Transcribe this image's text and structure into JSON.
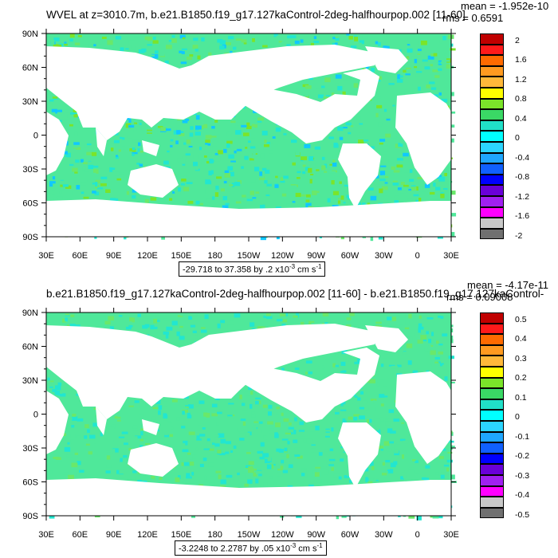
{
  "top": {
    "title": "WVEL at z=3010.7m, b.e21.B1850.f19_g17.127kaControl-2deg-halfhourpop.002 [11-60]",
    "mean": "mean = -1.952e-10",
    "rms": "rms = 0.6591",
    "range": "-29.718 to 37.358 by .2 x10",
    "range_exp": "-3",
    "range_unit": " cm s",
    "range_unit_exp": "-1",
    "colorbar": [
      "2",
      "1.6",
      "1.2",
      "0.8",
      "0.4",
      "0",
      "-0.4",
      "-0.8",
      "-1.2",
      "-1.6",
      "-2"
    ]
  },
  "bottom": {
    "title": "b.e21.B1850.f19_g17.127kaControl-2deg-halfhourpop.002 [11-60] - b.e21.B1850.f19_g17.127kaControl-",
    "mean": "mean = -4.17e-11",
    "rms": "rms = 0.09008",
    "range": "-3.2248 to 2.2787 by .05 x10",
    "range_exp": "-3",
    "range_unit": " cm s",
    "range_unit_exp": "-1",
    "colorbar": [
      "0.5",
      "0.4",
      "0.3",
      "0.2",
      "0.1",
      "0",
      "-0.1",
      "-0.2",
      "-0.3",
      "-0.4",
      "-0.5"
    ]
  },
  "axes": {
    "lat_labels": [
      "90N",
      "60N",
      "30N",
      "0",
      "30S",
      "60S",
      "90S"
    ],
    "lon_labels": [
      "30E",
      "60E",
      "90E",
      "120E",
      "150E",
      "180",
      "150W",
      "120W",
      "90W",
      "60W",
      "30W",
      "0",
      "30E"
    ]
  },
  "colors": {
    "ocean_main": "#4fe89a",
    "ocean_alt": "#22e6d0",
    "land": "#ffffff",
    "colorbar_swatches": [
      "#c00000",
      "#ff1a1a",
      "#ff6a00",
      "#ff9a20",
      "#ffb83a",
      "#ffff00",
      "#7be42a",
      "#3ad865",
      "#20e0c8",
      "#00ffff",
      "#2bd4ff",
      "#1fa6ff",
      "#1060ff",
      "#0000ff",
      "#6a00d8",
      "#a020f0",
      "#ff00ff",
      "#c8c8c8",
      "#707070"
    ]
  }
}
